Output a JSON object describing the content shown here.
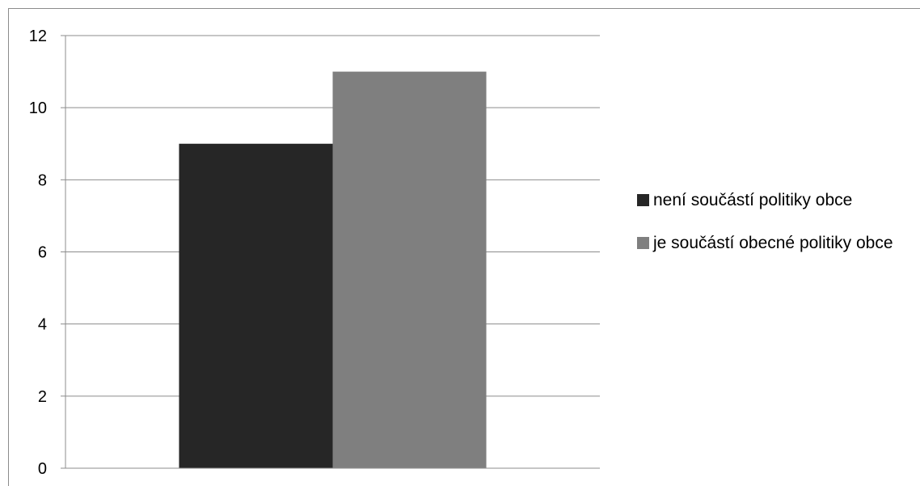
{
  "chart_data": {
    "type": "bar",
    "categories": [
      ""
    ],
    "series": [
      {
        "name": "není součástí politiky obce",
        "values": [
          9
        ],
        "color": "#262626"
      },
      {
        "name": "je součástí obecné politiky obce",
        "values": [
          11
        ],
        "color": "#7f7f7f"
      }
    ],
    "ylim": [
      0,
      12
    ],
    "yticks": [
      "0",
      "2",
      "4",
      "6",
      "8",
      "10",
      "12"
    ],
    "grid": true,
    "legend": "right"
  }
}
